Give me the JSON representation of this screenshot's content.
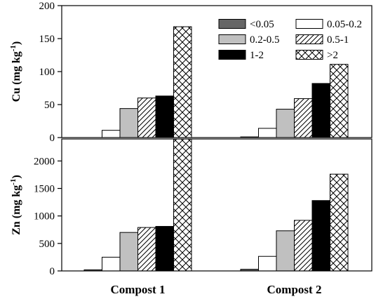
{
  "chart_data": [
    {
      "type": "bar",
      "panel": "top",
      "ylabel_main": "Cu (mg kg",
      "ylabel_sup": "-1",
      "ylabel_close": ")",
      "ylim": [
        0,
        200
      ],
      "yticks": [
        0,
        50,
        100,
        150,
        200
      ],
      "categories": [
        "Compost 1",
        "Compost 2"
      ],
      "series": [
        {
          "name": "<0.05",
          "values": [
            0,
            1
          ]
        },
        {
          "name": "0.05-0.2",
          "values": [
            11,
            14
          ]
        },
        {
          "name": "0.2-0.5",
          "values": [
            44,
            43
          ]
        },
        {
          "name": "0.5-1",
          "values": [
            60,
            59
          ]
        },
        {
          "name": "1-2",
          "values": [
            63,
            82
          ]
        },
        {
          "name": ">2",
          "values": [
            168,
            111
          ]
        }
      ],
      "legend_position": "top-right"
    },
    {
      "type": "bar",
      "panel": "bottom",
      "ylabel_main": "Zn (mg kg",
      "ylabel_sup": "-1",
      "ylabel_close": ")",
      "ylim": [
        0,
        2400
      ],
      "yticks": [
        0,
        500,
        1000,
        1500,
        2000
      ],
      "categories": [
        "Compost 1",
        "Compost 2"
      ],
      "series": [
        {
          "name": "<0.05",
          "values": [
            20,
            30
          ]
        },
        {
          "name": "0.05-0.2",
          "values": [
            250,
            265
          ]
        },
        {
          "name": "0.2-0.5",
          "values": [
            700,
            730
          ]
        },
        {
          "name": "0.5-1",
          "values": [
            790,
            920
          ]
        },
        {
          "name": "1-2",
          "values": [
            810,
            1280
          ]
        },
        {
          "name": ">2",
          "values": [
            2400,
            1760
          ]
        }
      ]
    }
  ],
  "series_styles": [
    {
      "fill": "#666666",
      "pattern": "none"
    },
    {
      "fill": "#ffffff",
      "pattern": "none"
    },
    {
      "fill": "#c0c0c0",
      "pattern": "none"
    },
    {
      "fill": "#ffffff",
      "pattern": "diagonal"
    },
    {
      "fill": "#000000",
      "pattern": "none"
    },
    {
      "fill": "#ffffff",
      "pattern": "crosshatch"
    }
  ]
}
